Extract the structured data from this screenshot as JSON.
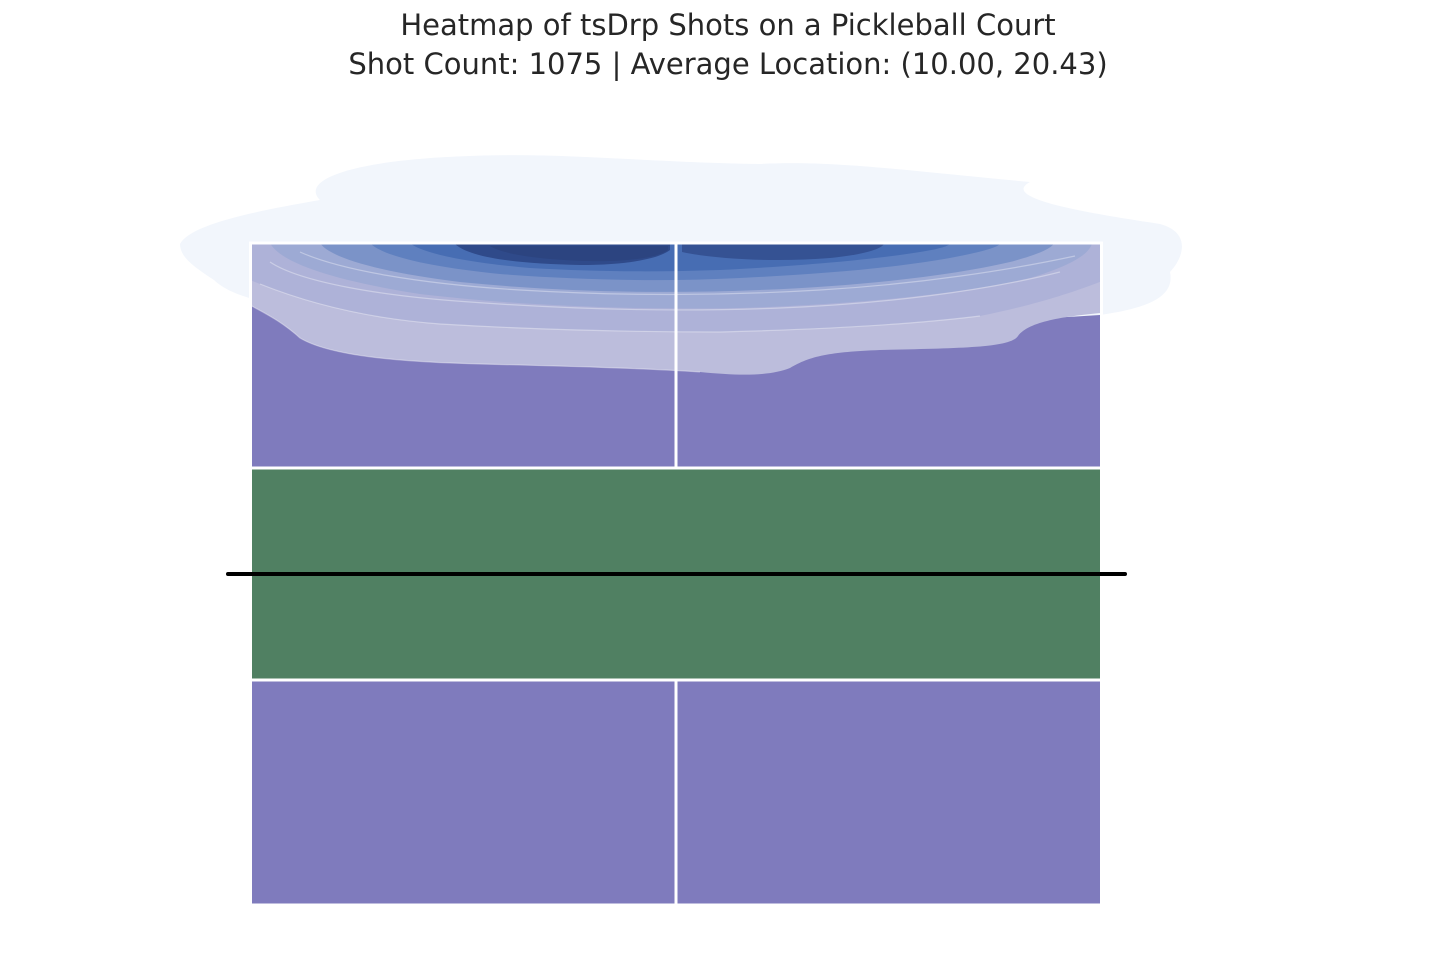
{
  "chart_data": {
    "type": "heatmap",
    "title": "Heatmap of tsDrp Shots on a Pickleball Court",
    "subtitle": "Shot Count: 1075 | Average Location: (10.00, 20.43)",
    "shot_count": 1075,
    "average_location": [
      10.0,
      20.43
    ],
    "xlabel": "",
    "ylabel": "",
    "xlim": [
      0,
      20
    ],
    "ylim": [
      0,
      44
    ],
    "grid": false,
    "axes_visible": false,
    "colormap": "Blues",
    "density_peak": [
      10.0,
      44.0
    ],
    "court": {
      "width": 20,
      "length": 44,
      "net_y": 22,
      "kitchen_lines_y": [
        15,
        29
      ],
      "centerline_x": 10
    },
    "colors": {
      "court": "#7f7bbd",
      "kitchen": "#508062",
      "lines": "#ffffff",
      "net": "#000000",
      "density_low": "#f1f6fc",
      "density_high": "#2f4a8a"
    }
  }
}
